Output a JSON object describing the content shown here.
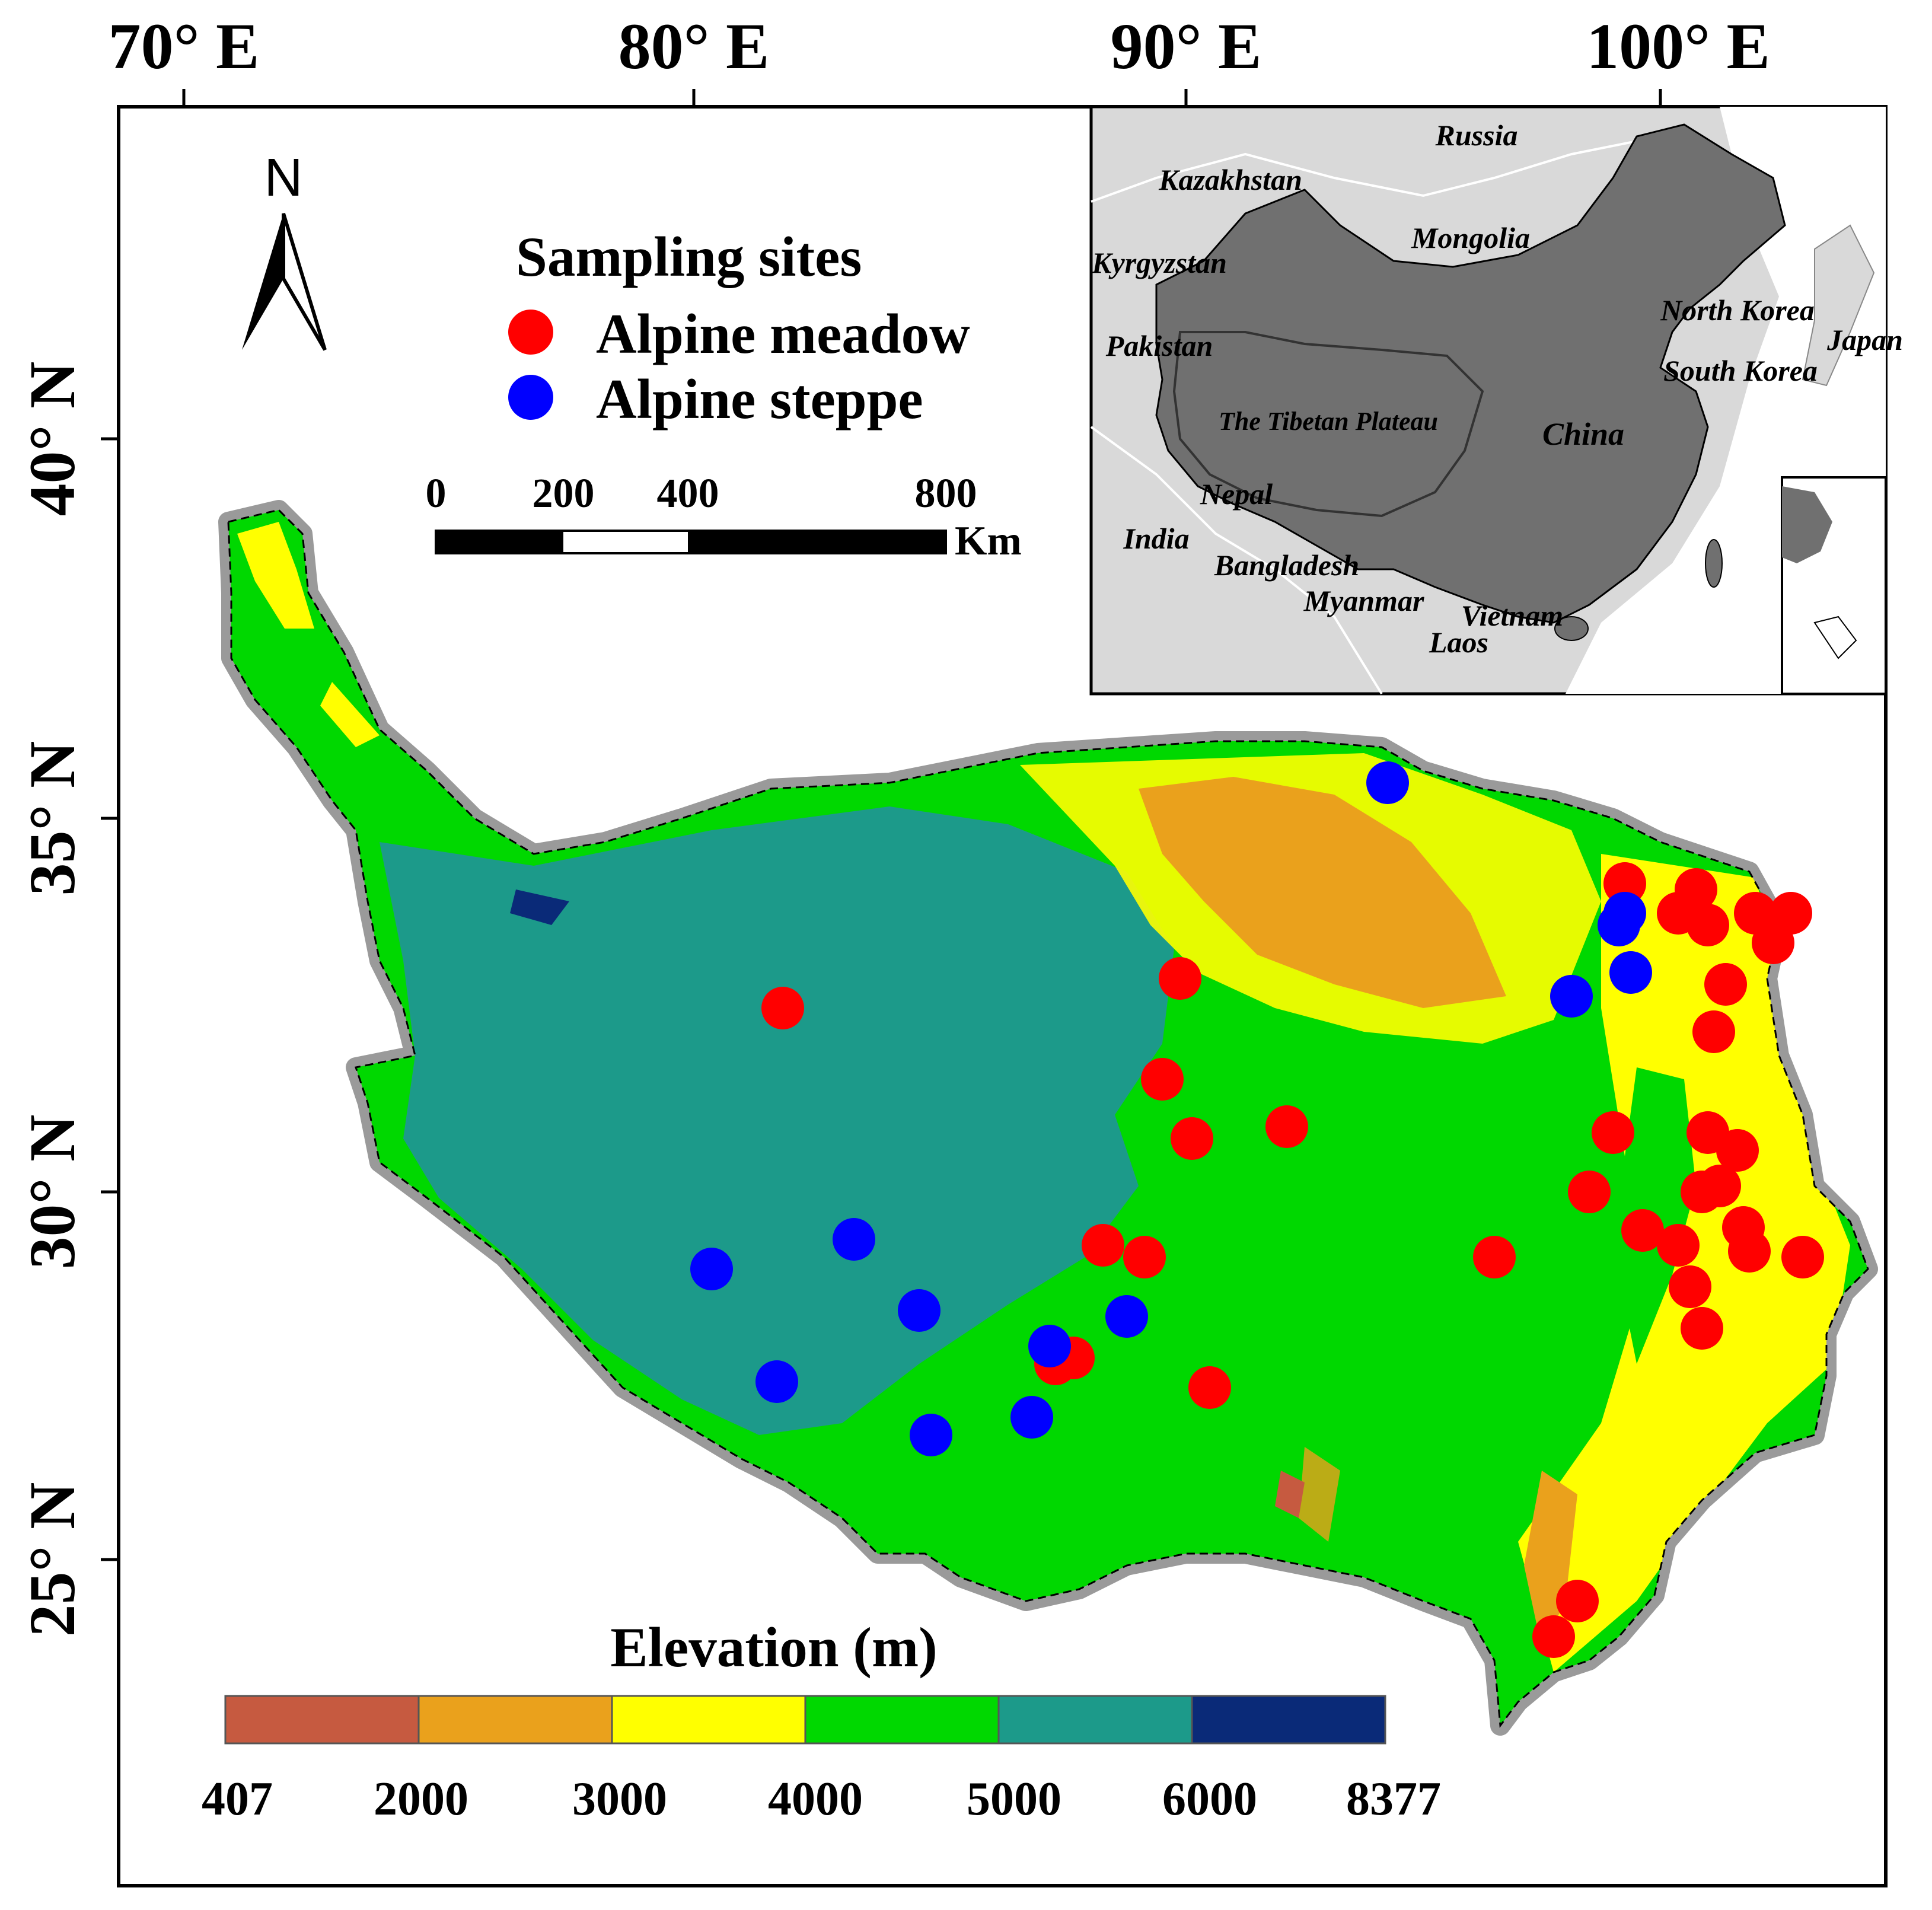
{
  "axes": {
    "longitude_labels": [
      "70° E",
      "80° E",
      "90° E",
      "100° E"
    ],
    "latitude_labels": [
      "40° N",
      "35° N",
      "30° N",
      "25° N"
    ]
  },
  "north_arrow": {
    "label": "N"
  },
  "legend": {
    "title": "Sampling sites",
    "items": [
      {
        "label": "Alpine meadow",
        "color": "#ff0000"
      },
      {
        "label": "Alpine steppe",
        "color": "#0000ff"
      }
    ]
  },
  "scale_bar": {
    "ticks": [
      "0",
      "200",
      "400",
      "800"
    ],
    "unit": "Km"
  },
  "elevation_legend": {
    "title": "Elevation (m)",
    "breaks": [
      "407",
      "2000",
      "3000",
      "4000",
      "5000",
      "6000",
      "8377"
    ],
    "colors": [
      "#c65a40",
      "#eaa11c",
      "#ffff00",
      "#00d800",
      "#1c9a8a",
      "#0a2a78"
    ]
  },
  "inset": {
    "labels": [
      "Russia",
      "Kazakhstan",
      "Mongolia",
      "Kyrgyzstan",
      "North Korea",
      "Japan",
      "Pakistan",
      "South Korea",
      "The Tibetan Plateau",
      "China",
      "Nepal",
      "India",
      "Bangladesh",
      "Myanmar",
      "Vietnam",
      "Laos"
    ]
  },
  "sites": {
    "meadow": [
      [
        1320,
        1700
      ],
      [
        1990,
        1650
      ],
      [
        1960,
        1820
      ],
      [
        2010,
        1920
      ],
      [
        2170,
        1900
      ],
      [
        2740,
        1490
      ],
      [
        2860,
        1500
      ],
      [
        2830,
        1540
      ],
      [
        2880,
        1560
      ],
      [
        2960,
        1540
      ],
      [
        2990,
        1590
      ],
      [
        3020,
        1540
      ],
      [
        2910,
        1660
      ],
      [
        2890,
        1740
      ],
      [
        2720,
        1910
      ],
      [
        2880,
        1910
      ],
      [
        2930,
        1940
      ],
      [
        2680,
        2010
      ],
      [
        2870,
        2010
      ],
      [
        2900,
        2000
      ],
      [
        2770,
        2075
      ],
      [
        2940,
        2070
      ],
      [
        2950,
        2110
      ],
      [
        3040,
        2120
      ],
      [
        2830,
        2100
      ],
      [
        2520,
        2120
      ],
      [
        2850,
        2170
      ],
      [
        2870,
        2240
      ],
      [
        1860,
        2100
      ],
      [
        1930,
        2120
      ],
      [
        1780,
        2300
      ],
      [
        1810,
        2290
      ],
      [
        2040,
        2340
      ],
      [
        2660,
        2700
      ],
      [
        2620,
        2760
      ]
    ],
    "steppe": [
      [
        2340,
        1320
      ],
      [
        2740,
        1540
      ],
      [
        2730,
        1560
      ],
      [
        2750,
        1640
      ],
      [
        2650,
        1680
      ],
      [
        1200,
        2140
      ],
      [
        1440,
        2090
      ],
      [
        1550,
        2210
      ],
      [
        1770,
        2270
      ],
      [
        1900,
        2220
      ],
      [
        1310,
        2330
      ],
      [
        1740,
        2390
      ],
      [
        1570,
        2420
      ]
    ]
  }
}
